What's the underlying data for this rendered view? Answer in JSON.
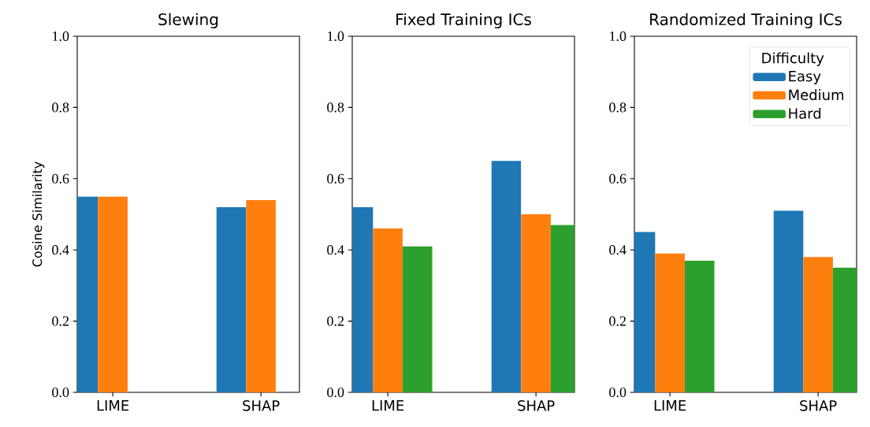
{
  "chart_data": [
    {
      "type": "bar",
      "title": "Slewing",
      "ylabel": "Cosine Similarity",
      "categories": [
        "LIME",
        "SHAP"
      ],
      "series": [
        {
          "color": "#1f77b4",
          "values": [
            0.55,
            0.52
          ]
        },
        {
          "color": "#ff7f0e",
          "values": [
            0.55,
            0.54
          ]
        },
        {
          "color": "#2ca02c",
          "values": [
            null,
            null
          ]
        }
      ],
      "ylim": [
        0,
        1
      ],
      "yticks": [
        {
          "value": 0,
          "label": "0.0"
        },
        {
          "value": 0.2,
          "label": "0.2"
        },
        {
          "value": 0.4,
          "label": "0.4"
        },
        {
          "value": 0.6,
          "label": "0.6"
        },
        {
          "value": 0.8,
          "label": "0.8"
        },
        {
          "value": 1,
          "label": "1.0"
        }
      ],
      "grid": false,
      "legend": false
    },
    {
      "type": "bar",
      "title": "Fixed Training ICs",
      "categories": [
        "LIME",
        "SHAP"
      ],
      "series": [
        {
          "color": "#1f77b4",
          "values": [
            0.52,
            0.65
          ]
        },
        {
          "color": "#ff7f0e",
          "values": [
            0.46,
            0.5
          ]
        },
        {
          "color": "#2ca02c",
          "values": [
            0.41,
            0.47
          ]
        }
      ],
      "ylim": [
        0,
        1
      ],
      "yticks": [
        {
          "value": 0,
          "label": "0.0"
        },
        {
          "value": 0.2,
          "label": "0.2"
        },
        {
          "value": 0.4,
          "label": "0.4"
        },
        {
          "value": 0.6,
          "label": "0.6"
        },
        {
          "value": 0.8,
          "label": "0.8"
        },
        {
          "value": 1,
          "label": "1.0"
        }
      ],
      "grid": false,
      "legend": false
    },
    {
      "type": "bar",
      "title": "Randomized Training ICs",
      "legend_title": "Difficulty",
      "categories": [
        "LIME",
        "SHAP"
      ],
      "series": [
        {
          "name": "Easy",
          "color": "#1f77b4",
          "values": [
            0.45,
            0.51
          ]
        },
        {
          "name": "Medium",
          "color": "#ff7f0e",
          "values": [
            0.39,
            0.38
          ]
        },
        {
          "name": "Hard",
          "color": "#2ca02c",
          "values": [
            0.37,
            0.35
          ]
        }
      ],
      "ylim": [
        0,
        1
      ],
      "yticks": [
        {
          "value": 0,
          "label": "0.0"
        },
        {
          "value": 0.2,
          "label": "0.2"
        },
        {
          "value": 0.4,
          "label": "0.4"
        },
        {
          "value": 0.6,
          "label": "0.6"
        },
        {
          "value": 0.8,
          "label": "0.8"
        },
        {
          "value": 1,
          "label": "1.0"
        }
      ],
      "grid": false,
      "legend": "top right"
    }
  ]
}
